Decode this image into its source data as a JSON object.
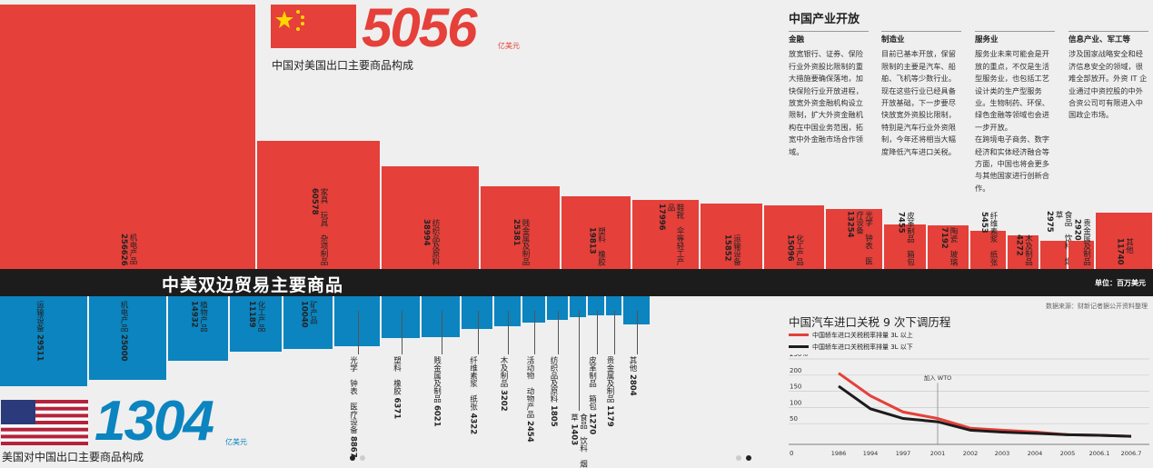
{
  "china": {
    "amount": "5056",
    "unit": "亿美元",
    "subtitle": "中国对美国出口主要商品构成",
    "flag": "china-flag"
  },
  "usa": {
    "amount": "1304",
    "unit": "亿美元",
    "subtitle": "美国对中国出口主要商品构成",
    "flag": "usa-flag"
  },
  "band": {
    "title": "中美双边贸易主要商品",
    "unit": "单位：百万美元"
  },
  "source": "数据来源：财新记者据公开资料整理",
  "colors": {
    "red": "#e5403a",
    "blue": "#0b84bf",
    "dark": "#1c1c1c"
  },
  "china_exports": [
    {
      "name": "机电产品",
      "value": 256626
    },
    {
      "name": "家具 玩具 杂项制品",
      "value": 60578
    },
    {
      "name": "纺织品及原料",
      "value": 38994
    },
    {
      "name": "贱金属及制品",
      "value": 25381
    },
    {
      "name": "塑料 橡胶",
      "value": 19813
    },
    {
      "name": "鞋靴 伞等轻工产品",
      "value": 17996
    },
    {
      "name": "运输设备",
      "value": 15852
    },
    {
      "name": "化工产品",
      "value": 15096
    },
    {
      "name": "光学 钟表 医疗设备",
      "value": 13254
    },
    {
      "name": "皮革制品 箱包",
      "value": 7455
    },
    {
      "name": "陶瓷 玻璃",
      "value": 7192
    },
    {
      "name": "纤维素浆 纸张",
      "value": 5453
    },
    {
      "name": "木及制品",
      "value": 4272
    },
    {
      "name": "食品 饮料 烟草",
      "value": 2975
    },
    {
      "name": "贵金属及制品",
      "value": 2920
    },
    {
      "name": "其他",
      "value": 11740
    }
  ],
  "us_exports": [
    {
      "name": "运输设备",
      "value": 29511
    },
    {
      "name": "机电产品",
      "value": 25000
    },
    {
      "name": "植物产品",
      "value": 14932
    },
    {
      "name": "化工产品",
      "value": 11189
    },
    {
      "name": "矿产品",
      "value": 10040
    },
    {
      "name": "光学 钟表 医疗设备",
      "value": 8867
    },
    {
      "name": "塑料 橡胶",
      "value": 6371
    },
    {
      "name": "贱金属及制品",
      "value": 6021
    },
    {
      "name": "纤维素浆 纸张",
      "value": 4322
    },
    {
      "name": "木及制品",
      "value": 3202
    },
    {
      "name": "活动物 动物产品",
      "value": 2454
    },
    {
      "name": "纺织品及原料",
      "value": 1805
    },
    {
      "name": "食品 饮料 烟草",
      "value": 1403
    },
    {
      "name": "皮革制品 箱包",
      "value": 1270
    },
    {
      "name": "贵金属及制品",
      "value": 1179
    },
    {
      "name": "其他",
      "value": 2804
    }
  ],
  "industry": {
    "title": "中国产业开放",
    "columns": [
      {
        "heading": "金融",
        "text": "放宽银行、证券、保险行业外资股比限制的重大措施要确保落地，加快保险行业开放进程，放宽外资金融机构设立限制，扩大外资金融机构在中国业务范围，拓宽中外金融市场合作领域。"
      },
      {
        "heading": "制造业",
        "text": "目前已基本开放，保留限制的主要是汽车、船舶、飞机等少数行业。现在这些行业已经具备开放基础，下一步要尽快放宽外资股比限制，特别是汽车行业外资限制，今年还将相当大幅度降低汽车进口关税。"
      },
      {
        "heading": "服务业",
        "text": "服务业未来可能会是开放的重点，不仅是生活型服务业，也包括工艺设计类的生产型服务业。生物制药、环保、绿色金融等领域也会进一步开放。\n在跨境电子商务、数字经济和实体经济融合等方面，中国也将会更多与其他国家进行创新合作。"
      },
      {
        "heading": "信息产业、军工等",
        "text": "涉及国家战略安全和经济信息安全的领域，很难全部放开。外资 IT 企业通过中资控股的中外合资公司可有限进入中国政企市场。"
      }
    ]
  },
  "chart_data": {
    "type": "line",
    "title": "中国汽车进口关税 9 次下调历程",
    "x": [
      "1986",
      "1994",
      "1997",
      "2001",
      "2002",
      "2003",
      "2004",
      "2005",
      "2006.1",
      "2006.7"
    ],
    "xlabel": "",
    "ylabel": "",
    "yticks": [
      "250%",
      "200",
      "150",
      "100",
      "50",
      "0"
    ],
    "ylim": [
      0,
      250
    ],
    "annotation": "加入 WTO",
    "annotation_x": "2001",
    "series": [
      {
        "name": "中国轿车进口关税税率排量 3L 以上",
        "color": "#e5403a",
        "values": [
          220,
          150,
          100,
          80,
          50,
          43.8,
          38.2,
          30,
          28,
          25
        ]
      },
      {
        "name": "中国轿车进口关税税率排量 3L 以下",
        "color": "#1c1c1c",
        "values": [
          180,
          110,
          80,
          70,
          43.8,
          38,
          34.2,
          30,
          28,
          25
        ]
      }
    ]
  }
}
